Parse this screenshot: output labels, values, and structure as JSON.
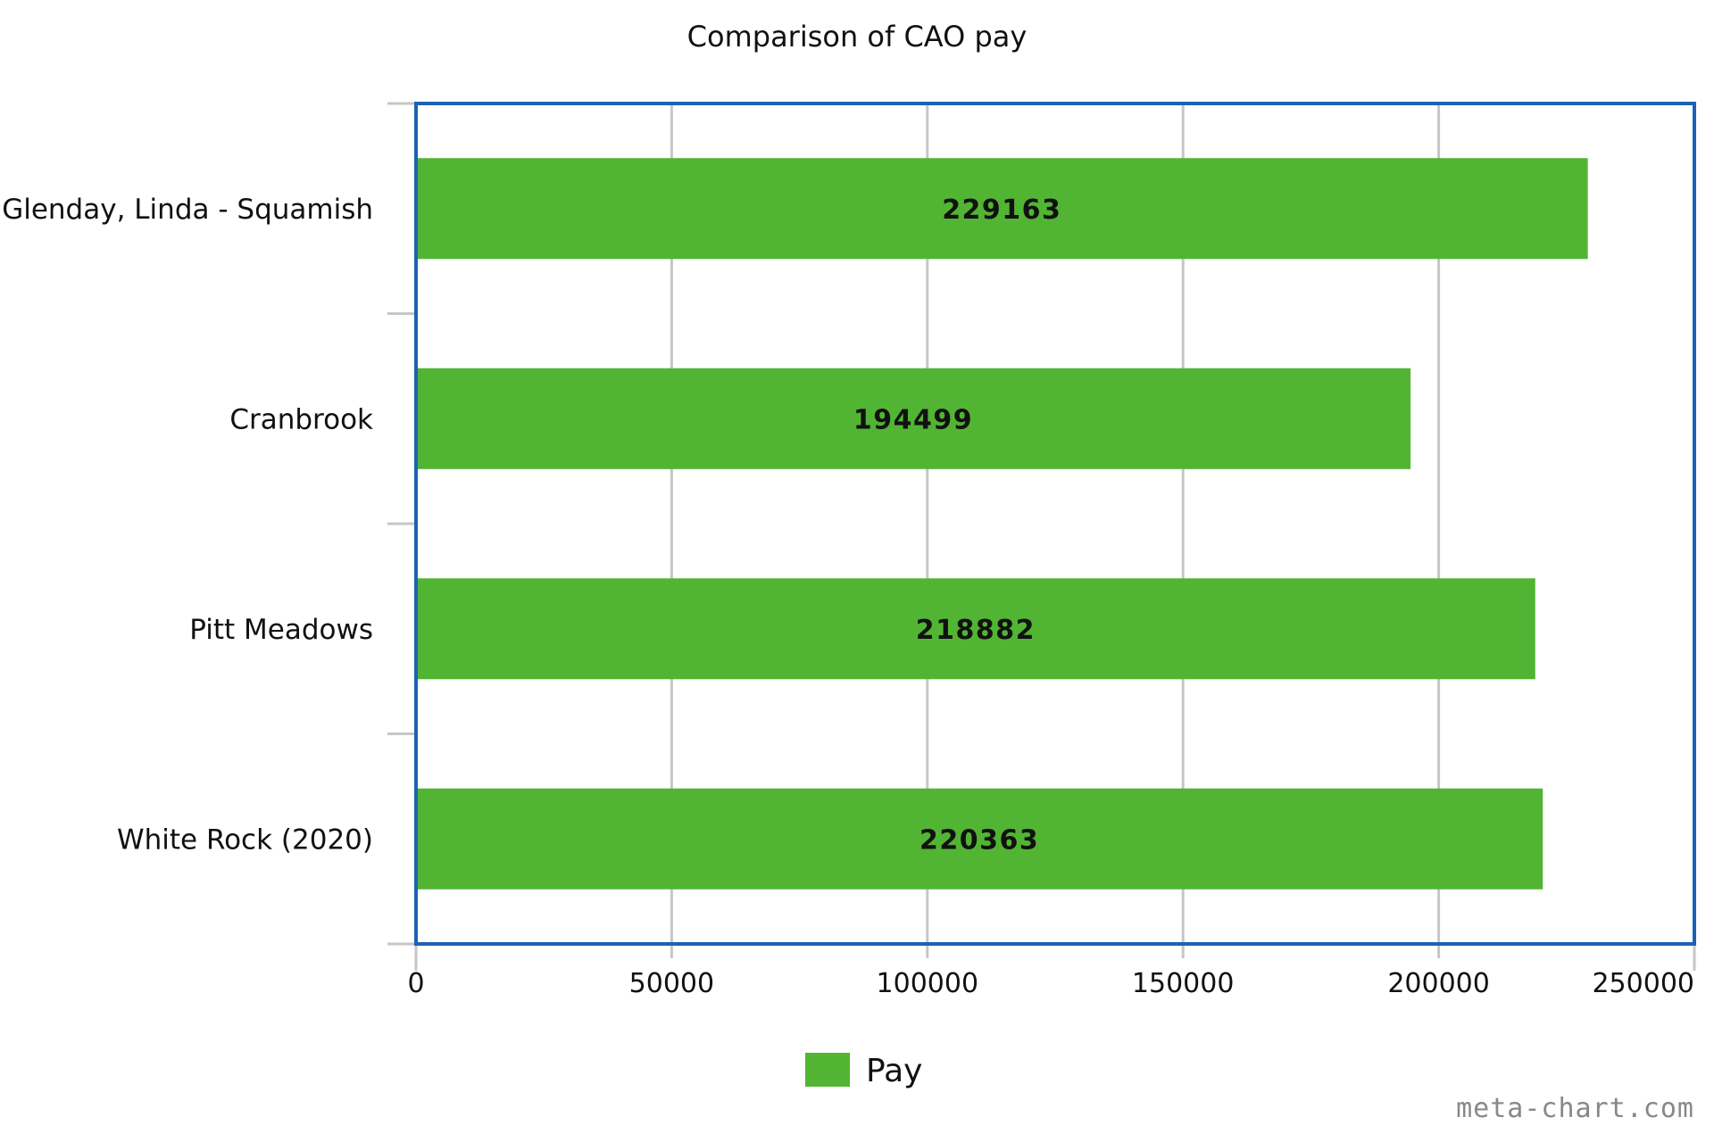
{
  "chart_data": {
    "type": "bar",
    "orientation": "horizontal",
    "title": "Comparison of CAO pay",
    "categories": [
      "Glenday, Linda - Squamish",
      "Cranbrook",
      "Pitt Meadows",
      "White Rock (2020)"
    ],
    "series": [
      {
        "name": "Pay",
        "values": [
          229163,
          194499,
          218882,
          220363
        ],
        "color": "#52b433"
      }
    ],
    "xlim": [
      0,
      250000
    ],
    "xticks": [
      "0",
      "50000",
      "100000",
      "150000",
      "200000",
      "250000"
    ],
    "xlabel": "",
    "ylabel": "",
    "grid": true,
    "legend": "bottom-center",
    "data_labels": [
      "229163",
      "194499",
      "218882",
      "220363"
    ],
    "frame_color": "#1a63b4",
    "grid_color": "#c6c6c6"
  },
  "watermark": "meta-chart.com"
}
